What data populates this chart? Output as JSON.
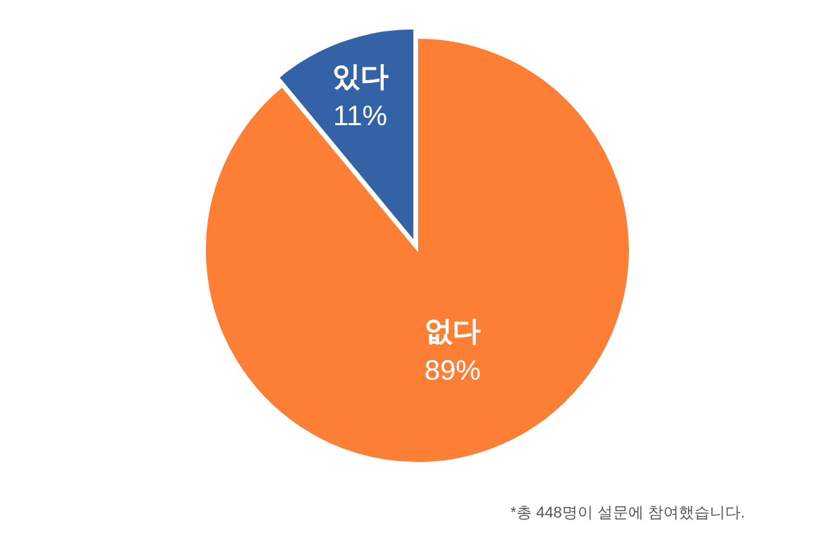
{
  "chart_data": {
    "type": "pie",
    "categories": [
      "있다",
      "없다"
    ],
    "values": [
      11,
      89
    ],
    "colors": [
      "#3462a6",
      "#fd7f35"
    ],
    "value_labels": [
      "11%",
      "89%"
    ],
    "annotations": [
      "*총 448명이 설문에 참여했습니다."
    ]
  }
}
